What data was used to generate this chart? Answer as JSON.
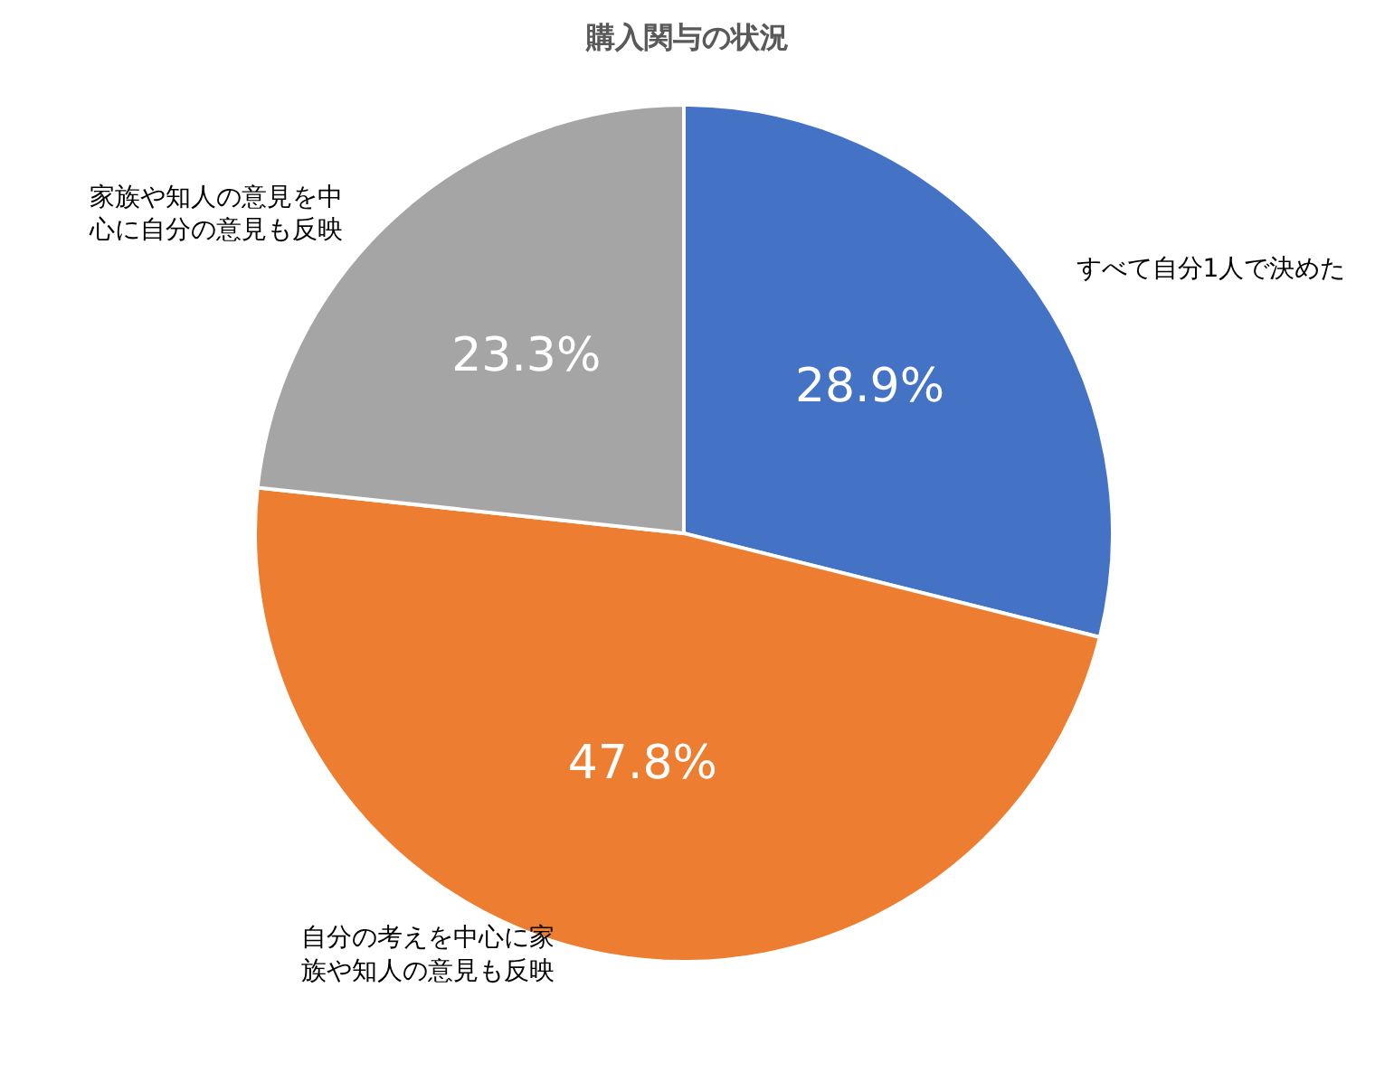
{
  "chart_data": {
    "type": "pie",
    "title": "購入関与の状況",
    "categories": [
      "すべて自分1人で決めた",
      "自分の考えを中心に家族や知人の意見も反映",
      "家族や知人の意見を中心に自分の意見も反映"
    ],
    "values": [
      28.9,
      47.8,
      23.3
    ],
    "colors": [
      "#4472c4",
      "#ed7d31",
      "#a5a5a5"
    ],
    "value_labels": [
      "28.9%",
      "47.8%",
      "23.3%"
    ],
    "legend": false
  }
}
